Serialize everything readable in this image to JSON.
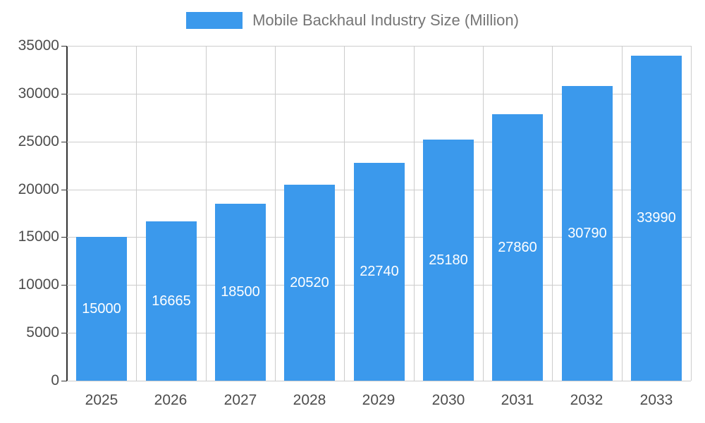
{
  "chart_data": {
    "type": "bar",
    "title": "Mobile Backhaul Industry Size (Million)",
    "categories": [
      "2025",
      "2026",
      "2027",
      "2028",
      "2029",
      "2030",
      "2031",
      "2032",
      "2033"
    ],
    "values": [
      15000,
      16665,
      18500,
      20520,
      22740,
      25180,
      27860,
      30790,
      33990
    ],
    "bar_value_labels": [
      "15000",
      "16665",
      "18500",
      "20520",
      "22740",
      "25180",
      "27860",
      "30790",
      "33990"
    ],
    "xlabel": "",
    "ylabel": "",
    "ylim": [
      0,
      35000
    ],
    "yticks": [
      0,
      5000,
      10000,
      15000,
      20000,
      25000,
      30000,
      35000
    ],
    "grid": true,
    "legend_position": "top",
    "colors": {
      "bar": "#3B99EC",
      "gridline": "#cccccc",
      "axis_line": "#333333",
      "axis_text": "#4d4d4d",
      "legend_text": "#757575",
      "bar_label_text": "#ffffff",
      "background": "#ffffff"
    }
  }
}
